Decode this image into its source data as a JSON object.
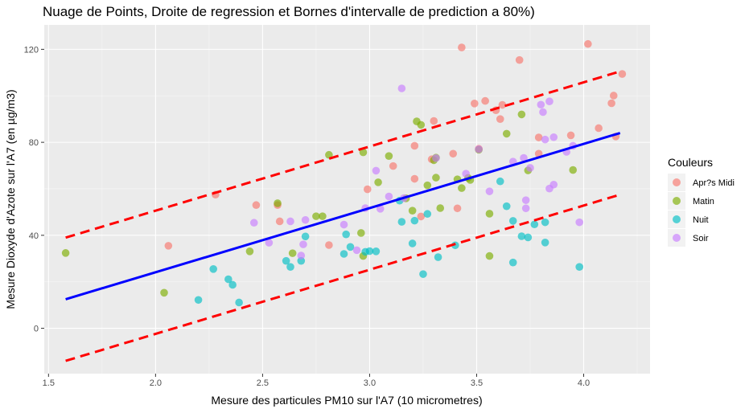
{
  "chart_data": {
    "type": "scatter",
    "title": "Nuage de Points, Droite de regression et Bornes d'intervalle de prediction a 80%)",
    "xlabel": "Mesure des particules PM10 sur l'A7 (10 micrometres)",
    "ylabel": "Mesure Dioxyde d'Azote sur l'A7 (en µg/m3)",
    "xlim": [
      1.48,
      4.31
    ],
    "ylim": [
      -19.5,
      130.5
    ],
    "x_ticks": [
      1.5,
      2.0,
      2.5,
      3.0,
      3.5,
      4.0
    ],
    "x_tick_labels": [
      "1.5",
      "2.0",
      "2.5",
      "3.0",
      "3.5",
      "4.0"
    ],
    "y_ticks": [
      0,
      40,
      80,
      120
    ],
    "y_tick_labels": [
      "0",
      "40",
      "80",
      "120"
    ],
    "grid": true,
    "legend": {
      "title": "Couleurs",
      "position": "right"
    },
    "lines": [
      {
        "role": "regression",
        "color": "#0000ff",
        "dash": "solid",
        "x": [
          1.58,
          4.17
        ],
        "y": [
          12.5,
          84.0
        ]
      },
      {
        "role": "upper-bound",
        "color": "#ff0000",
        "dash": "dashed",
        "x": [
          1.58,
          4.17
        ],
        "y": [
          39.0,
          110.5
        ]
      },
      {
        "role": "lower-bound",
        "color": "#ff0000",
        "dash": "dashed",
        "x": [
          1.58,
          4.17
        ],
        "y": [
          -14.0,
          57.5
        ]
      }
    ],
    "series": [
      {
        "name": "Apr?s Midi",
        "color": "#f8766d",
        "points": [
          [
            2.06,
            35.5
          ],
          [
            2.28,
            57.5
          ],
          [
            2.47,
            53.0
          ],
          [
            2.57,
            53.0
          ],
          [
            2.58,
            46.0
          ],
          [
            2.81,
            35.8
          ],
          [
            2.99,
            59.8
          ],
          [
            3.11,
            69.8
          ],
          [
            3.21,
            64.3
          ],
          [
            3.21,
            78.5
          ],
          [
            3.24,
            48.1
          ],
          [
            3.29,
            72.7
          ],
          [
            3.3,
            89.2
          ],
          [
            3.39,
            75.1
          ],
          [
            3.41,
            51.6
          ],
          [
            3.43,
            120.8
          ],
          [
            3.49,
            96.7
          ],
          [
            3.51,
            77.2
          ],
          [
            3.54,
            97.8
          ],
          [
            3.59,
            93.8
          ],
          [
            3.61,
            90.0
          ],
          [
            3.62,
            96.1
          ],
          [
            3.7,
            115.4
          ],
          [
            3.79,
            82.1
          ],
          [
            3.79,
            75.1
          ],
          [
            3.94,
            83.0
          ],
          [
            4.02,
            122.3
          ],
          [
            4.07,
            86.1
          ],
          [
            4.13,
            96.8
          ],
          [
            4.14,
            100.1
          ],
          [
            4.15,
            82.5
          ],
          [
            4.18,
            109.4
          ]
        ]
      },
      {
        "name": "Matin",
        "color": "#7cae00",
        "points": [
          [
            1.58,
            32.4
          ],
          [
            2.04,
            15.3
          ],
          [
            2.44,
            33.1
          ],
          [
            2.57,
            53.8
          ],
          [
            2.64,
            32.3
          ],
          [
            2.75,
            48.2
          ],
          [
            2.78,
            48.2
          ],
          [
            2.81,
            74.6
          ],
          [
            2.96,
            41.0
          ],
          [
            2.97,
            75.7
          ],
          [
            2.97,
            31.1
          ],
          [
            3.04,
            62.8
          ],
          [
            3.09,
            74.1
          ],
          [
            3.17,
            55.9
          ],
          [
            3.2,
            50.6
          ],
          [
            3.22,
            89.0
          ],
          [
            3.24,
            87.5
          ],
          [
            3.27,
            61.5
          ],
          [
            3.3,
            72.3
          ],
          [
            3.31,
            73.4
          ],
          [
            3.31,
            64.8
          ],
          [
            3.33,
            51.7
          ],
          [
            3.41,
            64.1
          ],
          [
            3.43,
            60.3
          ],
          [
            3.46,
            64.7
          ],
          [
            3.47,
            63.8
          ],
          [
            3.51,
            76.8
          ],
          [
            3.56,
            49.3
          ],
          [
            3.56,
            31.1
          ],
          [
            3.64,
            83.7
          ],
          [
            3.71,
            92.0
          ],
          [
            3.74,
            67.9
          ],
          [
            3.95,
            68.1
          ]
        ]
      },
      {
        "name": "Nuit",
        "color": "#00bfc4",
        "points": [
          [
            2.2,
            12.2
          ],
          [
            2.27,
            25.5
          ],
          [
            2.34,
            21.1
          ],
          [
            2.36,
            18.7
          ],
          [
            2.39,
            11.1
          ],
          [
            2.61,
            29.0
          ],
          [
            2.63,
            26.4
          ],
          [
            2.68,
            29.0
          ],
          [
            2.7,
            39.5
          ],
          [
            2.88,
            32.0
          ],
          [
            2.89,
            40.4
          ],
          [
            2.91,
            35.0
          ],
          [
            2.98,
            32.9
          ],
          [
            3.0,
            33.2
          ],
          [
            3.03,
            33.1
          ],
          [
            3.14,
            54.9
          ],
          [
            3.15,
            45.8
          ],
          [
            3.2,
            36.5
          ],
          [
            3.21,
            46.3
          ],
          [
            3.25,
            23.3
          ],
          [
            3.27,
            49.2
          ],
          [
            3.32,
            30.6
          ],
          [
            3.4,
            35.7
          ],
          [
            3.61,
            63.2
          ],
          [
            3.64,
            52.5
          ],
          [
            3.67,
            28.3
          ],
          [
            3.67,
            46.2
          ],
          [
            3.71,
            39.6
          ],
          [
            3.74,
            39.1
          ],
          [
            3.77,
            44.7
          ],
          [
            3.82,
            45.6
          ],
          [
            3.82,
            36.9
          ],
          [
            3.98,
            26.4
          ]
        ]
      },
      {
        "name": "Soir",
        "color": "#c77cff",
        "points": [
          [
            2.46,
            45.4
          ],
          [
            2.53,
            36.8
          ],
          [
            2.63,
            46.0
          ],
          [
            2.68,
            31.3
          ],
          [
            2.69,
            36.1
          ],
          [
            2.7,
            46.6
          ],
          [
            2.88,
            44.6
          ],
          [
            2.94,
            33.6
          ],
          [
            2.98,
            51.7
          ],
          [
            3.03,
            67.8
          ],
          [
            3.05,
            51.4
          ],
          [
            3.09,
            56.7
          ],
          [
            3.15,
            103.2
          ],
          [
            3.16,
            56.0
          ],
          [
            3.31,
            73.2
          ],
          [
            3.45,
            66.5
          ],
          [
            3.51,
            77.0
          ],
          [
            3.56,
            58.9
          ],
          [
            3.67,
            71.7
          ],
          [
            3.72,
            73.3
          ],
          [
            3.73,
            55.1
          ],
          [
            3.73,
            51.6
          ],
          [
            3.75,
            69.0
          ],
          [
            3.8,
            96.2
          ],
          [
            3.81,
            93.0
          ],
          [
            3.82,
            81.2
          ],
          [
            3.84,
            60.1
          ],
          [
            3.84,
            97.6
          ],
          [
            3.86,
            82.2
          ],
          [
            3.86,
            61.8
          ],
          [
            3.92,
            75.9
          ],
          [
            3.95,
            78.5
          ],
          [
            3.98,
            45.6
          ]
        ]
      }
    ]
  }
}
